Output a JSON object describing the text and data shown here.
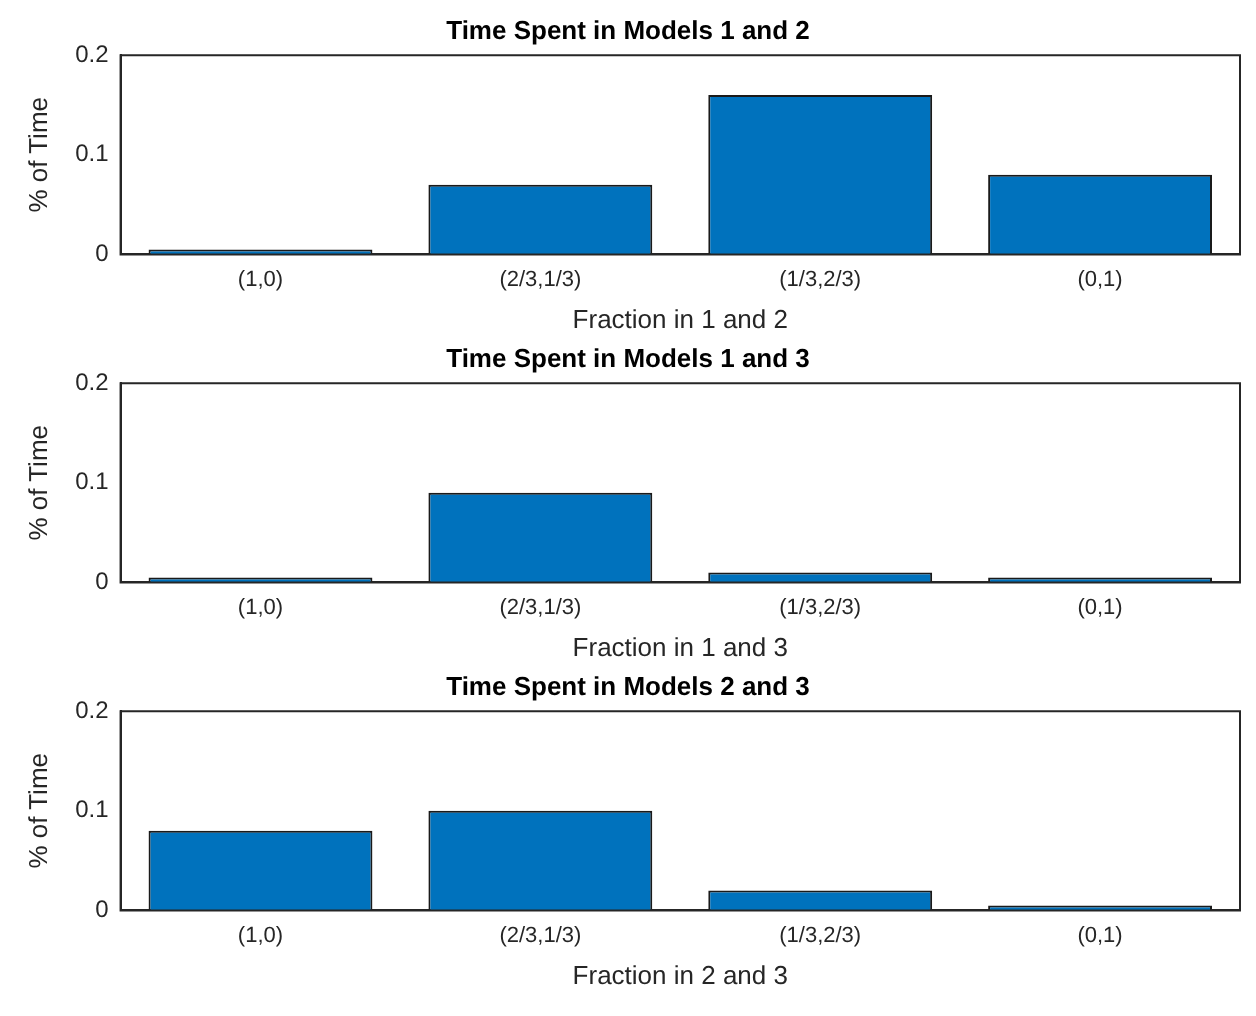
{
  "chart_data": [
    {
      "type": "bar",
      "title": "Time Spent in Models 1 and 2",
      "xlabel": "Fraction in 1 and 2",
      "ylabel": "% of Time",
      "categories": [
        "(1,0)",
        "(2/3,1/3)",
        "(1/3,2/3)",
        "(0,1)"
      ],
      "values": [
        0.005,
        0.07,
        0.16,
        0.08
      ],
      "color": "#0072bd",
      "ylim": [
        0,
        0.2
      ],
      "yticks": [
        0,
        0.1,
        0.2
      ],
      "grid": false
    },
    {
      "type": "bar",
      "title": "Time Spent in Models 1 and 3",
      "xlabel": "Fraction in 1 and 3",
      "ylabel": "% of Time",
      "categories": [
        "(1,0)",
        "(2/3,1/3)",
        "(1/3,2/3)",
        "(0,1)"
      ],
      "values": [
        0.005,
        0.09,
        0.01,
        0.005
      ],
      "color": "#0072bd",
      "ylim": [
        0,
        0.2
      ],
      "yticks": [
        0,
        0.1,
        0.2
      ],
      "grid": false
    },
    {
      "type": "bar",
      "title": "Time Spent in Models 2 and 3",
      "xlabel": "Fraction in 2 and 3",
      "ylabel": "% of Time",
      "categories": [
        "(1,0)",
        "(2/3,1/3)",
        "(1/3,2/3)",
        "(0,1)"
      ],
      "values": [
        0.08,
        0.1,
        0.02,
        0.005
      ],
      "color": "#0072bd",
      "ylim": [
        0,
        0.2
      ],
      "yticks": [
        0,
        0.1,
        0.2
      ],
      "grid": false
    }
  ]
}
